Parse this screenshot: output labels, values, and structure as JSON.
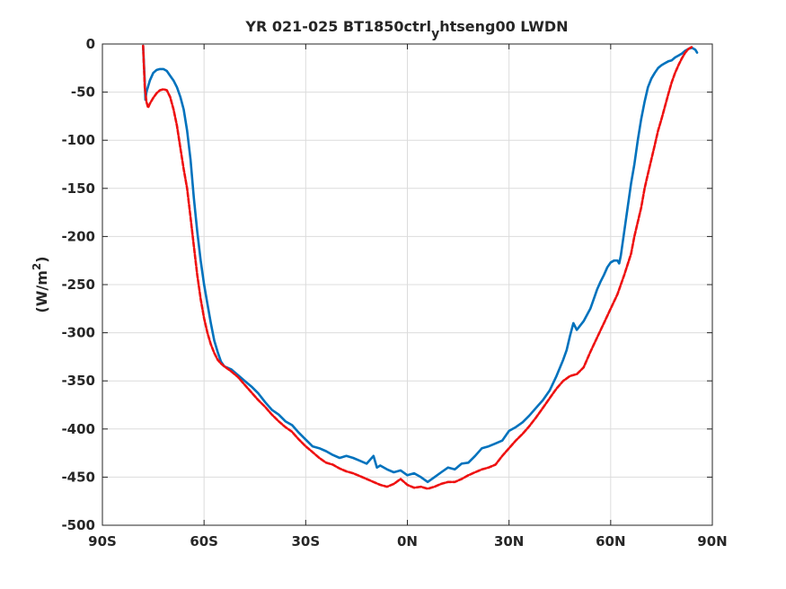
{
  "chart_data": {
    "type": "line",
    "title": "YR 021-025 BT1850ctrl",
    "title_sub": "y",
    "title_suffix": "htseng00 LWDN",
    "ylabel_prefix": "(W/m",
    "ylabel_sup": "2",
    "ylabel_suffix": ")",
    "xlim": [
      -90,
      90
    ],
    "ylim": [
      -500,
      0
    ],
    "x_ticks": [
      -90,
      -60,
      -30,
      0,
      30,
      60,
      90
    ],
    "x_tick_labels": [
      "90S",
      "60S",
      "30S",
      "0N",
      "30N",
      "60N",
      "90N"
    ],
    "y_ticks": [
      0,
      -50,
      -100,
      -150,
      -200,
      -250,
      -300,
      -350,
      -400,
      -450,
      -500
    ],
    "y_tick_labels": [
      "0",
      "-50",
      "-100",
      "-150",
      "-200",
      "-250",
      "-300",
      "-350",
      "-400",
      "-450",
      "-500"
    ],
    "grid": true,
    "legend": "none",
    "series": [
      {
        "color": "#0072bd",
        "style": "solid",
        "points": [
          [
            -78,
            -2
          ],
          [
            -77.5,
            -40
          ],
          [
            -77.3,
            -58
          ],
          [
            -77,
            -50
          ],
          [
            -76,
            -38
          ],
          [
            -75,
            -30
          ],
          [
            -74,
            -27
          ],
          [
            -73,
            -26
          ],
          [
            -72,
            -26
          ],
          [
            -71,
            -28
          ],
          [
            -70,
            -33
          ],
          [
            -69,
            -38
          ],
          [
            -68,
            -45
          ],
          [
            -67,
            -55
          ],
          [
            -66,
            -68
          ],
          [
            -65,
            -90
          ],
          [
            -64,
            -120
          ],
          [
            -63,
            -160
          ],
          [
            -62,
            -195
          ],
          [
            -61,
            -225
          ],
          [
            -60,
            -250
          ],
          [
            -59,
            -270
          ],
          [
            -58,
            -290
          ],
          [
            -57,
            -308
          ],
          [
            -56,
            -320
          ],
          [
            -55,
            -330
          ],
          [
            -54,
            -335
          ],
          [
            -52,
            -338
          ],
          [
            -50,
            -344
          ],
          [
            -48,
            -350
          ],
          [
            -46,
            -356
          ],
          [
            -44,
            -363
          ],
          [
            -42,
            -372
          ],
          [
            -40,
            -380
          ],
          [
            -38,
            -385
          ],
          [
            -36,
            -392
          ],
          [
            -34,
            -396
          ],
          [
            -32,
            -404
          ],
          [
            -30,
            -411
          ],
          [
            -28,
            -418
          ],
          [
            -26,
            -420
          ],
          [
            -24,
            -423
          ],
          [
            -22,
            -427
          ],
          [
            -20,
            -430
          ],
          [
            -18,
            -428
          ],
          [
            -16,
            -430
          ],
          [
            -14,
            -433
          ],
          [
            -12,
            -436
          ],
          [
            -10,
            -428
          ],
          [
            -9,
            -440
          ],
          [
            -8,
            -438
          ],
          [
            -6,
            -442
          ],
          [
            -4,
            -445
          ],
          [
            -2,
            -443
          ],
          [
            0,
            -448
          ],
          [
            2,
            -446
          ],
          [
            4,
            -450
          ],
          [
            6,
            -455
          ],
          [
            8,
            -450
          ],
          [
            10,
            -445
          ],
          [
            12,
            -440
          ],
          [
            14,
            -442
          ],
          [
            16,
            -436
          ],
          [
            18,
            -435
          ],
          [
            20,
            -428
          ],
          [
            22,
            -420
          ],
          [
            24,
            -418
          ],
          [
            26,
            -415
          ],
          [
            28,
            -412
          ],
          [
            30,
            -402
          ],
          [
            32,
            -398
          ],
          [
            34,
            -393
          ],
          [
            36,
            -386
          ],
          [
            38,
            -378
          ],
          [
            40,
            -370
          ],
          [
            42,
            -360
          ],
          [
            44,
            -345
          ],
          [
            46,
            -328
          ],
          [
            47,
            -318
          ],
          [
            48,
            -303
          ],
          [
            49,
            -290
          ],
          [
            50,
            -297
          ],
          [
            52,
            -288
          ],
          [
            54,
            -275
          ],
          [
            55,
            -265
          ],
          [
            56,
            -255
          ],
          [
            57,
            -247
          ],
          [
            58,
            -240
          ],
          [
            59,
            -232
          ],
          [
            60,
            -227
          ],
          [
            61,
            -225
          ],
          [
            62,
            -225
          ],
          [
            62.5,
            -228
          ],
          [
            63,
            -220
          ],
          [
            64,
            -195
          ],
          [
            65,
            -170
          ],
          [
            66,
            -145
          ],
          [
            67,
            -125
          ],
          [
            68,
            -100
          ],
          [
            69,
            -78
          ],
          [
            70,
            -60
          ],
          [
            71,
            -45
          ],
          [
            72,
            -36
          ],
          [
            73,
            -30
          ],
          [
            74,
            -25
          ],
          [
            75,
            -22
          ],
          [
            76,
            -20
          ],
          [
            77,
            -18
          ],
          [
            78,
            -17
          ],
          [
            79,
            -14
          ],
          [
            80,
            -12
          ],
          [
            81,
            -10
          ],
          [
            82,
            -7
          ],
          [
            83,
            -5
          ],
          [
            84,
            -4
          ],
          [
            85,
            -6
          ],
          [
            85.5,
            -9
          ]
        ]
      },
      {
        "color": "#ee1111",
        "style": "dashed",
        "points": [
          [
            -78,
            -2
          ],
          [
            -77.5,
            -45
          ],
          [
            -77,
            -60
          ],
          [
            -76.5,
            -66
          ],
          [
            -76,
            -62
          ],
          [
            -75,
            -56
          ],
          [
            -74,
            -51
          ],
          [
            -73,
            -48
          ],
          [
            -72,
            -47
          ],
          [
            -71,
            -48
          ],
          [
            -70,
            -55
          ],
          [
            -69,
            -68
          ],
          [
            -68,
            -85
          ],
          [
            -67,
            -108
          ],
          [
            -66,
            -130
          ],
          [
            -65,
            -150
          ],
          [
            -64,
            -180
          ],
          [
            -63,
            -210
          ],
          [
            -62,
            -240
          ],
          [
            -61,
            -265
          ],
          [
            -60,
            -285
          ],
          [
            -59,
            -300
          ],
          [
            -58,
            -312
          ],
          [
            -57,
            -321
          ],
          [
            -56,
            -328
          ],
          [
            -55,
            -332
          ],
          [
            -54,
            -335
          ],
          [
            -52,
            -340
          ],
          [
            -50,
            -346
          ],
          [
            -48,
            -354
          ],
          [
            -46,
            -362
          ],
          [
            -44,
            -370
          ],
          [
            -42,
            -377
          ],
          [
            -40,
            -385
          ],
          [
            -38,
            -392
          ],
          [
            -36,
            -398
          ],
          [
            -34,
            -403
          ],
          [
            -32,
            -411
          ],
          [
            -30,
            -418
          ],
          [
            -28,
            -424
          ],
          [
            -26,
            -430
          ],
          [
            -24,
            -435
          ],
          [
            -22,
            -437
          ],
          [
            -20,
            -441
          ],
          [
            -18,
            -444
          ],
          [
            -16,
            -446
          ],
          [
            -14,
            -449
          ],
          [
            -12,
            -452
          ],
          [
            -10,
            -455
          ],
          [
            -8,
            -458
          ],
          [
            -6,
            -460
          ],
          [
            -4,
            -457
          ],
          [
            -2,
            -452
          ],
          [
            0,
            -458
          ],
          [
            2,
            -461
          ],
          [
            4,
            -460
          ],
          [
            6,
            -462
          ],
          [
            8,
            -460
          ],
          [
            10,
            -457
          ],
          [
            12,
            -455
          ],
          [
            14,
            -455
          ],
          [
            16,
            -452
          ],
          [
            18,
            -448
          ],
          [
            20,
            -445
          ],
          [
            22,
            -442
          ],
          [
            24,
            -440
          ],
          [
            26,
            -437
          ],
          [
            28,
            -428
          ],
          [
            30,
            -420
          ],
          [
            32,
            -412
          ],
          [
            34,
            -405
          ],
          [
            36,
            -397
          ],
          [
            38,
            -388
          ],
          [
            40,
            -378
          ],
          [
            42,
            -368
          ],
          [
            44,
            -358
          ],
          [
            46,
            -350
          ],
          [
            48,
            -345
          ],
          [
            50,
            -343
          ],
          [
            52,
            -336
          ],
          [
            54,
            -320
          ],
          [
            56,
            -305
          ],
          [
            58,
            -290
          ],
          [
            60,
            -275
          ],
          [
            62,
            -260
          ],
          [
            64,
            -240
          ],
          [
            66,
            -218
          ],
          [
            67,
            -200
          ],
          [
            68,
            -185
          ],
          [
            69,
            -170
          ],
          [
            70,
            -150
          ],
          [
            71,
            -135
          ],
          [
            72,
            -120
          ],
          [
            73,
            -105
          ],
          [
            74,
            -90
          ],
          [
            75,
            -78
          ],
          [
            76,
            -65
          ],
          [
            77,
            -52
          ],
          [
            78,
            -40
          ],
          [
            79,
            -30
          ],
          [
            80,
            -22
          ],
          [
            81,
            -15
          ],
          [
            82,
            -9
          ],
          [
            83,
            -5
          ],
          [
            84,
            -3
          ]
        ]
      }
    ]
  }
}
